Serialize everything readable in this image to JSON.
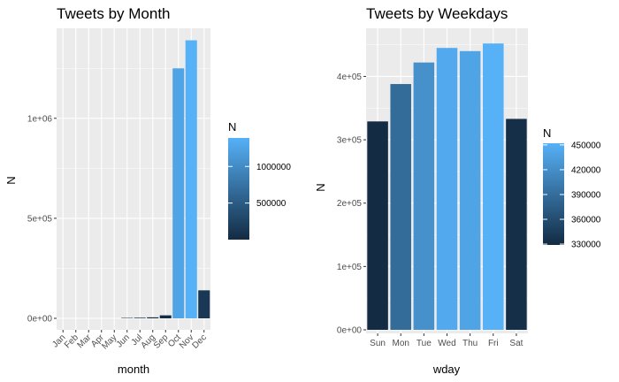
{
  "chart_data": [
    {
      "type": "bar",
      "title": "Tweets by Month",
      "xlabel": "month",
      "ylabel": "N",
      "categories": [
        "Jan",
        "Feb",
        "Mar",
        "Apr",
        "May",
        "Jun",
        "Jul",
        "Aug",
        "Sep",
        "Oct",
        "Nov",
        "Dec"
      ],
      "values": [
        0,
        0,
        0,
        0,
        0,
        2000,
        3000,
        5000,
        15000,
        1250000,
        1390000,
        140000
      ],
      "ylim": [
        0,
        1400000
      ],
      "yticks": [
        0,
        500000,
        1000000
      ],
      "ytick_labels": [
        "0e+00",
        "5e+05",
        "1e+06"
      ],
      "x_tick_rotation": 45,
      "grid": true,
      "legend": {
        "title": "N",
        "position": "right",
        "type": "colorbar",
        "range": [
          0,
          1390000
        ],
        "breaks": [
          500000,
          1000000
        ],
        "labels": [
          "500000",
          "1000000"
        ]
      },
      "colors": {
        "low": "#132B43",
        "high": "#56B1F7",
        "panel": "#EBEBEB",
        "grid": "#FFFFFF"
      }
    },
    {
      "type": "bar",
      "title": "Tweets by Weekdays",
      "xlabel": "wday",
      "ylabel": "N",
      "categories": [
        "Sun",
        "Mon",
        "Tue",
        "Wed",
        "Thu",
        "Fri",
        "Sat"
      ],
      "values": [
        329000,
        388000,
        422000,
        445000,
        440000,
        452000,
        333000
      ],
      "ylim": [
        0,
        460000
      ],
      "yticks": [
        0,
        100000,
        200000,
        300000,
        400000
      ],
      "ytick_labels": [
        "0e+00",
        "1e+05",
        "2e+05",
        "3e+05",
        "4e+05"
      ],
      "x_tick_rotation": 0,
      "grid": true,
      "legend": {
        "title": "N",
        "position": "right",
        "type": "colorbar",
        "range": [
          329000,
          452000
        ],
        "breaks": [
          330000,
          360000,
          390000,
          420000,
          450000
        ],
        "labels": [
          "330000",
          "360000",
          "390000",
          "420000",
          "450000"
        ]
      },
      "colors": {
        "low": "#132B43",
        "high": "#56B1F7",
        "panel": "#EBEBEB",
        "grid": "#FFFFFF"
      }
    }
  ]
}
